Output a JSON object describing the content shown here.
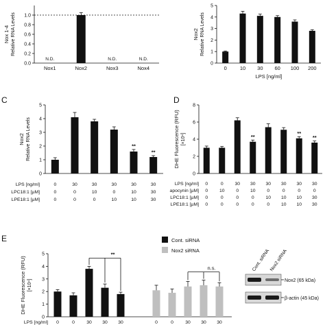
{
  "chart_data": [
    {
      "id": "A",
      "type": "bar",
      "ylabel_lines": [
        "Nox 1-4",
        "Relative RNA Levels"
      ],
      "categories": [
        "Nox1",
        "Nox2",
        "Nox3",
        "Nox4"
      ],
      "values": [
        0.0,
        1.0,
        0.0,
        0.0
      ],
      "errors": [
        0.0,
        0.05,
        0.0,
        0.0
      ],
      "bar_labels": [
        "N.D.",
        "",
        "N.D.",
        "N.D."
      ],
      "ylim": [
        0,
        1.2
      ],
      "yticks": [
        "0.0",
        "0.2",
        "0.4",
        "0.6",
        "0.8",
        "1.0"
      ],
      "reference_line": 1.0,
      "xlabel": ""
    },
    {
      "id": "B",
      "type": "bar",
      "ylabel_lines": [
        "Nox2",
        "Relative RNA Levels"
      ],
      "categories": [
        "0",
        "10",
        "30",
        "60",
        "100",
        "200"
      ],
      "values": [
        1.0,
        4.3,
        4.1,
        4.0,
        3.6,
        2.8
      ],
      "errors": [
        0.05,
        0.2,
        0.15,
        0.12,
        0.15,
        0.1
      ],
      "ylim": [
        0,
        5
      ],
      "yticks": [
        "0",
        "1",
        "2",
        "3",
        "4",
        "5"
      ],
      "xlabel": "LPS [ng/ml]"
    },
    {
      "id": "C",
      "panel_letter": "C",
      "type": "bar",
      "ylabel_lines": [
        "Nox2",
        "Relative RNA Levels"
      ],
      "values": [
        1.0,
        4.1,
        3.8,
        3.2,
        1.6,
        1.2
      ],
      "errors": [
        0.15,
        0.35,
        0.15,
        0.2,
        0.15,
        0.1
      ],
      "annotations": [
        "",
        "",
        "",
        "",
        "**",
        "**"
      ],
      "ylim": [
        0,
        5
      ],
      "yticks": [
        "0",
        "1",
        "2",
        "3",
        "4",
        "5"
      ],
      "conditions": [
        {
          "label": "LPS [ng/ml]",
          "values": [
            "0",
            "30",
            "30",
            "30",
            "30",
            "30"
          ]
        },
        {
          "label": "LPC18:1 [µM]",
          "values": [
            "0",
            "0",
            "10",
            "0",
            "10",
            "30"
          ]
        },
        {
          "label": "LPE18:1 [µM]",
          "values": [
            "0",
            "0",
            "0",
            "10",
            "10",
            "30"
          ]
        }
      ]
    },
    {
      "id": "D",
      "panel_letter": "D",
      "type": "bar",
      "ylabel_lines": [
        "DHE Fluorescence (RFU)",
        "[×10⁴]"
      ],
      "values": [
        3.0,
        3.0,
        6.2,
        3.7,
        5.4,
        5.1,
        4.1,
        3.6
      ],
      "errors": [
        0.2,
        0.15,
        0.3,
        0.2,
        0.4,
        0.25,
        0.2,
        0.2
      ],
      "annotations": [
        "",
        "",
        "",
        "**",
        "",
        "",
        "**",
        "**"
      ],
      "ylim": [
        0,
        8
      ],
      "yticks": [
        "0",
        "2",
        "4",
        "6",
        "8"
      ],
      "conditions": [
        {
          "label": "LPS [ng/ml]",
          "values": [
            "0",
            "0",
            "30",
            "30",
            "30",
            "30",
            "30",
            "30"
          ]
        },
        {
          "label": "apocynin [µM]",
          "values": [
            "0",
            "10",
            "0",
            "10",
            "0",
            "0",
            "0",
            "0"
          ]
        },
        {
          "label": "LPC18:1 [µM]",
          "values": [
            "0",
            "0",
            "0",
            "0",
            "10",
            "10",
            "10",
            "30"
          ]
        },
        {
          "label": "LPE18:1 [µM]",
          "values": [
            "0",
            "0",
            "0",
            "0",
            "0",
            "10",
            "10",
            "30"
          ]
        }
      ]
    },
    {
      "id": "E",
      "panel_letter": "E",
      "type": "bar",
      "ylabel_lines": [
        "DHE Fluorescence (RFU)",
        "[×10⁴]"
      ],
      "series": [
        {
          "name": "Cont. siRNA",
          "color": "#111111",
          "values": [
            2.0,
            1.7,
            3.8,
            2.3,
            1.8
          ],
          "errors": [
            0.15,
            0.2,
            0.2,
            0.3,
            0.15
          ]
        },
        {
          "name": "Nox2 siRNA",
          "color": "#bfbfbf",
          "values": [
            2.1,
            1.9,
            2.4,
            2.5,
            2.4
          ],
          "errors": [
            0.4,
            0.3,
            0.4,
            0.4,
            0.3
          ]
        }
      ],
      "ylim": [
        0,
        5
      ],
      "yticks": [
        "0",
        "1",
        "2",
        "3",
        "4",
        "5"
      ],
      "brackets": [
        {
          "series": 0,
          "from": 2,
          "to": [
            3,
            4
          ],
          "label": "**"
        },
        {
          "series": 1,
          "from": 2,
          "to": [
            3,
            4
          ],
          "label": "n.s."
        }
      ],
      "conditions": [
        {
          "label": "LPS [ng/ml]",
          "values": [
            "0",
            "0",
            "30",
            "30",
            "30",
            "0",
            "0",
            "30",
            "30",
            "30"
          ]
        }
      ]
    }
  ],
  "western_blot": {
    "lane_labels": [
      "Cont. siRNA",
      "Nox2 siRNA"
    ],
    "band_labels": [
      "Nox2 (65 kDa)",
      "β-actin (45 kDa)"
    ]
  }
}
